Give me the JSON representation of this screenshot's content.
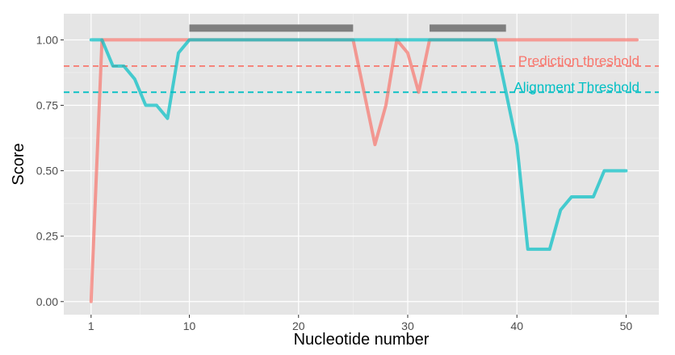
{
  "chart_data": {
    "type": "line",
    "title": "",
    "xlabel": "Nucleotide number",
    "ylabel": "Score",
    "xlim": [
      -1.5,
      53
    ],
    "ylim": [
      -0.05,
      1.1
    ],
    "x_ticks": [
      1,
      10,
      20,
      30,
      40,
      50
    ],
    "y_ticks": [
      0.0,
      0.25,
      0.5,
      0.75,
      1.0
    ],
    "y_tick_labels": [
      "0.00",
      "0.25",
      "0.50",
      "0.75",
      "1.00"
    ],
    "grid": true,
    "legend": "none",
    "series": [
      {
        "color": "#F8766D",
        "x": [
          1,
          2,
          3,
          4,
          5,
          6,
          7,
          8,
          9,
          10,
          11,
          12,
          13,
          14,
          15,
          16,
          17,
          18,
          19,
          20,
          21,
          22,
          23,
          24,
          25,
          26,
          27,
          28,
          29,
          30,
          31,
          32,
          33,
          34,
          35,
          36,
          37,
          38,
          39,
          40,
          41,
          42,
          43,
          44,
          45,
          46,
          47,
          48,
          49,
          50,
          51
        ],
        "y": [
          0,
          1,
          1,
          1,
          1,
          1,
          1,
          1,
          1,
          1,
          1,
          1,
          1,
          1,
          1,
          1,
          1,
          1,
          1,
          1,
          1,
          1,
          1,
          1,
          1,
          0.8,
          0.6,
          0.75,
          1,
          0.95,
          0.8,
          1,
          1,
          1,
          1,
          1,
          1,
          1,
          1,
          1,
          1,
          1,
          1,
          1,
          1,
          1,
          1,
          1,
          1,
          1,
          1
        ]
      },
      {
        "color": "#00BFC4",
        "x": [
          1,
          2,
          3,
          4,
          5,
          6,
          7,
          8,
          9,
          10,
          11,
          12,
          13,
          14,
          15,
          16,
          17,
          18,
          19,
          20,
          21,
          22,
          23,
          24,
          25,
          26,
          27,
          28,
          29,
          30,
          31,
          32,
          33,
          34,
          35,
          36,
          37,
          38,
          39,
          40,
          41,
          42,
          43,
          44,
          45,
          46,
          47,
          48,
          49,
          50
        ],
        "y": [
          1,
          1,
          0.9,
          0.9,
          0.85,
          0.75,
          0.75,
          0.7,
          0.95,
          1,
          1,
          1,
          1,
          1,
          1,
          1,
          1,
          1,
          1,
          1,
          1,
          1,
          1,
          1,
          1,
          1,
          1,
          1,
          1,
          1,
          1,
          1,
          1,
          1,
          1,
          1,
          1,
          1,
          0.8,
          0.6,
          0.2,
          0.2,
          0.2,
          0.35,
          0.4,
          0.4,
          0.4,
          0.5,
          0.5,
          0.5
        ]
      }
    ],
    "thresholds": [
      {
        "label": "Prediction threshold",
        "y": 0.9,
        "color": "#F8766D"
      },
      {
        "label": "Alignment Threshold",
        "y": 0.8,
        "color": "#00BFC4"
      }
    ],
    "region_bars": [
      {
        "x_start": 10,
        "x_end": 25,
        "color": "#7F7F7F"
      },
      {
        "x_start": 32,
        "x_end": 39,
        "color": "#7F7F7F"
      }
    ]
  }
}
